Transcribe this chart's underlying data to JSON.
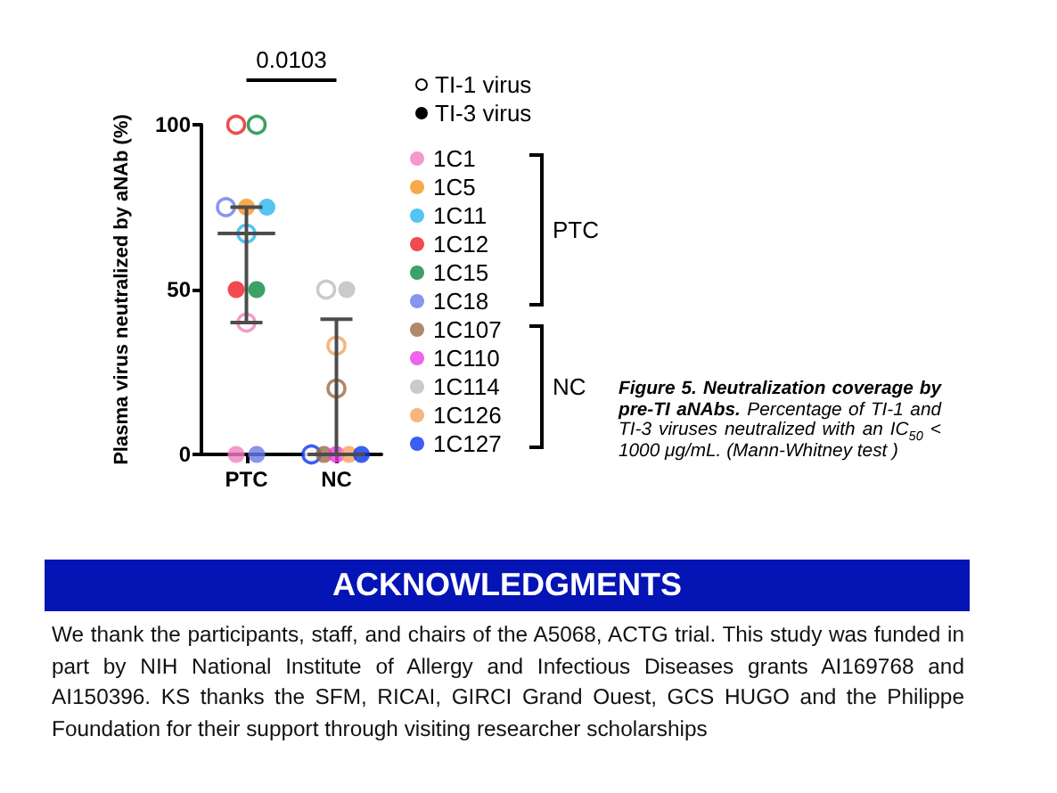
{
  "chart_data": {
    "type": "scatter",
    "categories": [
      "PTC",
      "NC"
    ],
    "ylabel": "Plasma virus neutralized by aNAb (%)",
    "ylim": [
      0,
      100
    ],
    "yticks": [
      0,
      50,
      100
    ],
    "marker": "circle",
    "legend": "right",
    "series": [
      {
        "name": "TI-1 virus",
        "color": "#000000",
        "x": [
          "PTC",
          "PTC",
          "PTC",
          "PTC",
          "PTC",
          "PTC",
          "NC",
          "NC",
          "NC",
          "NC",
          "NC"
        ],
        "values": [
          40,
          null,
          67,
          100,
          100,
          75,
          20,
          null,
          50,
          33,
          0
        ],
        "colors": [
          "#f27fbf",
          "#f7941d",
          "#29b5f0",
          "#ee1d23",
          "#0b8a3e",
          "#6a7bea",
          "#9c6a45",
          "#ee3bea",
          "#bdbdbd",
          "#f5a25d",
          "#0a36f0"
        ]
      },
      {
        "name": "TI-3 virus",
        "color": "#000000",
        "x": [
          "PTC",
          "PTC",
          "PTC",
          "PTC",
          "PTC",
          "PTC",
          "NC",
          "NC",
          "NC",
          "NC",
          "NC"
        ],
        "values": [
          0,
          75,
          75,
          50,
          50,
          0,
          0,
          0,
          50,
          0,
          0
        ],
        "colors": [
          "#f27fbf",
          "#f7941d",
          "#29b5f0",
          "#ee1d23",
          "#0b8a3e",
          "#6a7bea",
          "#9c6a45",
          "#ee3bea",
          "#bdbdbd",
          "#f5a25d",
          "#0a36f0"
        ]
      },
      {
        "type": "box",
        "color": "#4d4d4d",
        "boxes": [
          {
            "low": 40,
            "q1": 67,
            "median": 67,
            "q3": 67,
            "high": 75
          },
          {
            "low": 0,
            "q1": 0,
            "median": 0,
            "q3": 0,
            "high": 41
          }
        ]
      },
      {
        "name": "1C1",
        "color": "#f27fbf",
        "x": [
          "PTC"
        ],
        "values": [
          null
        ]
      },
      {
        "name": "1C5",
        "color": "#f7941d",
        "x": [
          "PTC"
        ],
        "values": [
          null
        ]
      },
      {
        "name": "1C11",
        "color": "#29b5f0",
        "x": [
          "PTC"
        ],
        "values": [
          null
        ]
      },
      {
        "name": "1C12",
        "color": "#ee1d23",
        "x": [
          "PTC"
        ],
        "values": [
          null
        ]
      },
      {
        "name": "1C15",
        "color": "#0b8a3e",
        "x": [
          "PTC"
        ],
        "values": [
          null
        ]
      },
      {
        "name": "1C18",
        "color": "#6a7bea",
        "x": [
          "PTC"
        ],
        "values": [
          null
        ]
      },
      {
        "name": "1C107",
        "color": "#9c6a45",
        "x": [
          "NC"
        ],
        "values": [
          null
        ]
      },
      {
        "name": "1C110",
        "color": "#ee3bea",
        "x": [
          "NC"
        ],
        "values": [
          null
        ]
      },
      {
        "name": "1C114",
        "color": "#bdbdbd",
        "x": [
          "NC"
        ],
        "values": [
          null
        ]
      },
      {
        "name": "1C126",
        "color": "#f5a25d",
        "x": [
          "NC"
        ],
        "values": [
          null
        ]
      },
      {
        "name": "1C127",
        "color": "#0a36f0",
        "x": [
          "NC"
        ],
        "values": [
          null
        ]
      }
    ],
    "annotations": [
      "0.0103",
      "Figure 5. Neutralization coverage by pre-TI aNAbs.",
      "Percentage of TI-1 and TI-3 viruses neutralized with an IC$_{50}$ < 1000 μg/mL. (Mann-Whitney test )",
      "ACKNOWLEDGMENTS",
      "We thank the participants, staff, and chairs of the A5068, ACTG trial. This study was funded in part by NIH National Institute of Allergy and Infectious Diseases grants AI169768 and AI150396. KS thanks the SFM, RICAI, GIRCI Grand Ouest, GCS HUGO and the Philippe Foundation for their support through visiting researcher scholarships"
    ]
  }
}
